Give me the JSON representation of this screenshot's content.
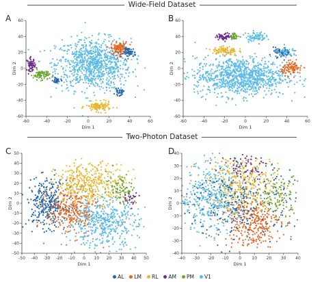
{
  "sections": {
    "top": "Wide-Field Dataset",
    "bottom": "Two-Photon Dataset"
  },
  "legend": [
    {
      "label": "AL",
      "color": "#2166ac"
    },
    {
      "label": "LM",
      "color": "#e8641e"
    },
    {
      "label": "RL",
      "color": "#e8b730"
    },
    {
      "label": "AM",
      "color": "#6a2c8e"
    },
    {
      "label": "PM",
      "color": "#6aa630"
    },
    {
      "label": "V1",
      "color": "#5bbbe8"
    }
  ],
  "chart_data": [
    {
      "panel": "A",
      "type": "scatter",
      "xlabel": "Dim 1",
      "ylabel": "Dim 2",
      "xlim": [
        -60,
        60
      ],
      "ylim": [
        -60,
        60
      ],
      "xticks": [
        -60,
        -40,
        -20,
        0,
        20,
        40,
        60
      ],
      "yticks": [
        -60,
        -40,
        -20,
        0,
        20,
        40,
        60
      ],
      "clusters": [
        {
          "series": "V1",
          "cx": 5,
          "cy": 5,
          "sx": 18,
          "sy": 16,
          "n": 900
        },
        {
          "series": "LM",
          "cx": 30,
          "cy": 25,
          "sx": 4,
          "sy": 4,
          "n": 120
        },
        {
          "series": "AL",
          "cx": 40,
          "cy": 20,
          "sx": 3,
          "sy": 3,
          "n": 60
        },
        {
          "series": "AM",
          "cx": -55,
          "cy": 5,
          "sx": 2,
          "sy": 4,
          "n": 60
        },
        {
          "series": "PM",
          "cx": -45,
          "cy": -8,
          "sx": 4,
          "sy": 3,
          "n": 80
        },
        {
          "series": "RL",
          "cx": 10,
          "cy": -48,
          "sx": 6,
          "sy": 3,
          "n": 120
        },
        {
          "series": "AL",
          "cx": -30,
          "cy": -15,
          "sx": 2,
          "sy": 2,
          "n": 30
        },
        {
          "series": "AL",
          "cx": 30,
          "cy": -30,
          "sx": 2,
          "sy": 2,
          "n": 30
        }
      ]
    },
    {
      "panel": "B",
      "type": "scatter",
      "xlabel": "Dim 1",
      "ylabel": "Dim 2",
      "xlim": [
        -60,
        60
      ],
      "ylim": [
        -60,
        60
      ],
      "xticks": [
        -60,
        -40,
        -20,
        0,
        20,
        40,
        60
      ],
      "yticks": [
        -60,
        -40,
        -20,
        0,
        20,
        40,
        60
      ],
      "clusters": [
        {
          "series": "V1",
          "cx": -5,
          "cy": -10,
          "sx": 22,
          "sy": 12,
          "n": 1000
        },
        {
          "series": "AM",
          "cx": -20,
          "cy": 40,
          "sx": 4,
          "sy": 2,
          "n": 60
        },
        {
          "series": "PM",
          "cx": -10,
          "cy": 40,
          "sx": 2,
          "sy": 2,
          "n": 30
        },
        {
          "series": "V1",
          "cx": 10,
          "cy": 40,
          "sx": 5,
          "sy": 3,
          "n": 80
        },
        {
          "series": "RL",
          "cx": -20,
          "cy": 22,
          "sx": 6,
          "sy": 3,
          "n": 100
        },
        {
          "series": "AL",
          "cx": 35,
          "cy": 20,
          "sx": 4,
          "sy": 3,
          "n": 70
        },
        {
          "series": "LM",
          "cx": 45,
          "cy": 0,
          "sx": 5,
          "sy": 4,
          "n": 100
        },
        {
          "series": "V1",
          "cx": 40,
          "cy": 20,
          "sx": 6,
          "sy": 3,
          "n": 40
        }
      ]
    },
    {
      "panel": "C",
      "type": "scatter",
      "xlabel": "Dim 1",
      "ylabel": "Dim 2",
      "xlim": [
        -50,
        50
      ],
      "ylim": [
        -50,
        50
      ],
      "xticks": [
        -50,
        -40,
        -30,
        -20,
        -10,
        0,
        10,
        20,
        30,
        40,
        50
      ],
      "yticks": [
        -50,
        -40,
        -30,
        -20,
        -10,
        0,
        10,
        20,
        30,
        40,
        50
      ],
      "clusters": [
        {
          "series": "AL",
          "cx": -30,
          "cy": 0,
          "sx": 8,
          "sy": 12,
          "n": 300
        },
        {
          "series": "LM",
          "cx": -10,
          "cy": -8,
          "sx": 10,
          "sy": 12,
          "n": 300
        },
        {
          "series": "RL",
          "cx": 5,
          "cy": 20,
          "sx": 14,
          "sy": 10,
          "n": 400
        },
        {
          "series": "V1",
          "cx": 15,
          "cy": -20,
          "sx": 14,
          "sy": 12,
          "n": 450
        },
        {
          "series": "PM",
          "cx": 30,
          "cy": 15,
          "sx": 6,
          "sy": 8,
          "n": 80
        },
        {
          "series": "AM",
          "cx": 38,
          "cy": 5,
          "sx": 3,
          "sy": 3,
          "n": 25
        }
      ]
    },
    {
      "panel": "D",
      "type": "scatter",
      "xlabel": "Dim 1",
      "ylabel": "Dim 2",
      "xlim": [
        -40,
        40
      ],
      "ylim": [
        -40,
        40
      ],
      "xticks": [
        -40,
        -30,
        -20,
        -10,
        0,
        10,
        20,
        30,
        40
      ],
      "yticks": [
        -40,
        -30,
        -20,
        -10,
        0,
        10,
        20,
        30,
        40
      ],
      "clusters": [
        {
          "series": "V1",
          "cx": -18,
          "cy": 5,
          "sx": 12,
          "sy": 14,
          "n": 450
        },
        {
          "series": "RL",
          "cx": 3,
          "cy": 15,
          "sx": 12,
          "sy": 12,
          "n": 350
        },
        {
          "series": "LM",
          "cx": 8,
          "cy": -15,
          "sx": 10,
          "sy": 10,
          "n": 300
        },
        {
          "series": "AL",
          "cx": 0,
          "cy": 0,
          "sx": 18,
          "sy": 16,
          "n": 250
        },
        {
          "series": "PM",
          "cx": 25,
          "cy": 5,
          "sx": 8,
          "sy": 10,
          "n": 120
        },
        {
          "series": "AM",
          "cx": 5,
          "cy": 30,
          "sx": 8,
          "sy": 5,
          "n": 60
        }
      ]
    }
  ]
}
